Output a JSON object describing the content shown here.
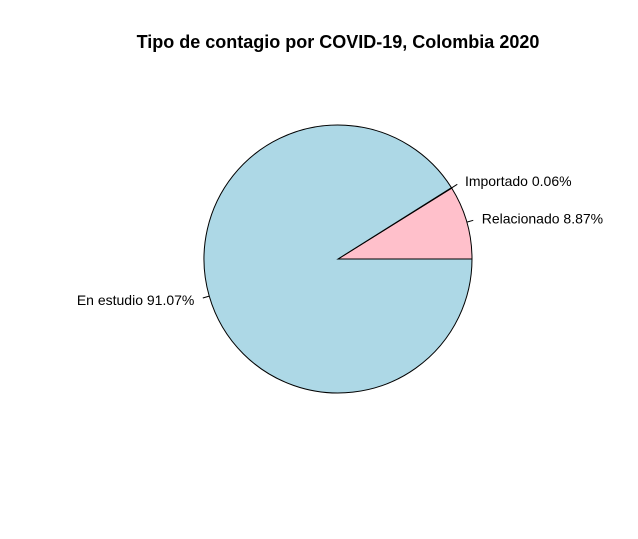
{
  "chart_data": {
    "type": "pie",
    "title": "Tipo de contagio por COVID-19, Colombia 2020",
    "slices": [
      {
        "label": "Relacionado",
        "value": 8.87,
        "percent_label": "8.87%",
        "color": "#ffc0cb"
      },
      {
        "label": "Importado",
        "value": 0.06,
        "percent_label": "0.06%",
        "color": "#ffc0cb"
      },
      {
        "label": "En estudio",
        "value": 91.07,
        "percent_label": "91.07%",
        "color": "#add8e6"
      }
    ],
    "start_angle_deg": 0,
    "direction": "counterclockwise",
    "border_color": "#000000"
  }
}
